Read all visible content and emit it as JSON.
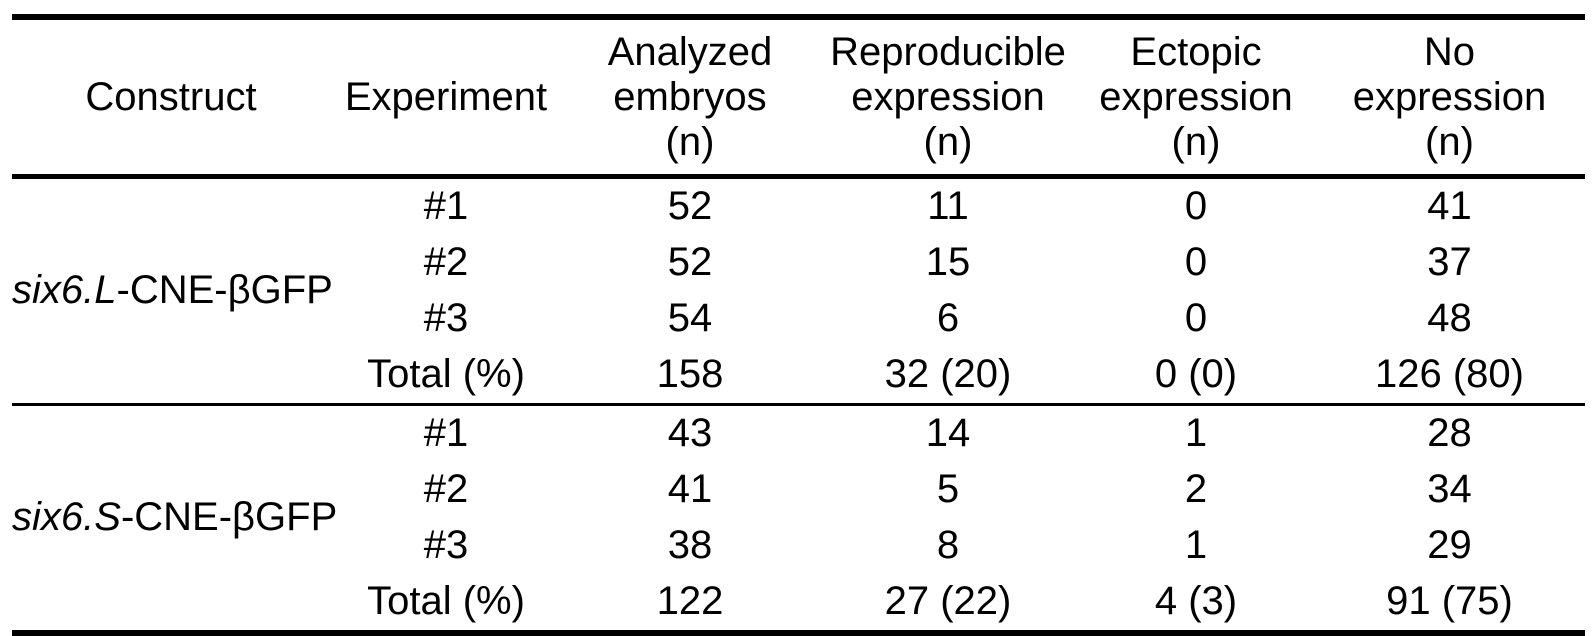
{
  "page": {
    "background_color": "#ffffff",
    "text_color": "#000000",
    "rule_color": "#000000"
  },
  "table": {
    "headers": [
      {
        "label": "Construct"
      },
      {
        "label": "Experiment"
      },
      {
        "label": "Analyzed\nembryos\n(n)"
      },
      {
        "label": "Reproducible\nexpression\n(n)"
      },
      {
        "label": "Ectopic\nexpression\n(n)"
      },
      {
        "label": "No\nexpression\n(n)"
      }
    ],
    "groups": [
      {
        "construct": {
          "italic_part": "six6.L",
          "regular_part": "-CNE-βGFP"
        },
        "rows": [
          {
            "experiment": "#1",
            "analyzed_embryos": "52",
            "reproducible_expression": "11",
            "ectopic_expression": "0",
            "no_expression": "41"
          },
          {
            "experiment": "#2",
            "analyzed_embryos": "52",
            "reproducible_expression": "15",
            "ectopic_expression": "0",
            "no_expression": "37"
          },
          {
            "experiment": "#3",
            "analyzed_embryos": "54",
            "reproducible_expression": "6",
            "ectopic_expression": "0",
            "no_expression": "48"
          },
          {
            "experiment": "Total (%)",
            "analyzed_embryos": "158",
            "reproducible_expression": "32 (20)",
            "ectopic_expression": "0 (0)",
            "no_expression": "126 (80)"
          }
        ]
      },
      {
        "construct": {
          "italic_part": "six6.S",
          "regular_part": "-CNE-βGFP"
        },
        "rows": [
          {
            "experiment": "#1",
            "analyzed_embryos": "43",
            "reproducible_expression": "14",
            "ectopic_expression": "1",
            "no_expression": "28"
          },
          {
            "experiment": "#2",
            "analyzed_embryos": "41",
            "reproducible_expression": "5",
            "ectopic_expression": "2",
            "no_expression": "34"
          },
          {
            "experiment": "#3",
            "analyzed_embryos": "38",
            "reproducible_expression": "8",
            "ectopic_expression": "1",
            "no_expression": "29"
          },
          {
            "experiment": "Total (%)",
            "analyzed_embryos": "122",
            "reproducible_expression": "27 (22)",
            "ectopic_expression": "4 (3)",
            "no_expression": "91 (75)"
          }
        ]
      }
    ]
  }
}
